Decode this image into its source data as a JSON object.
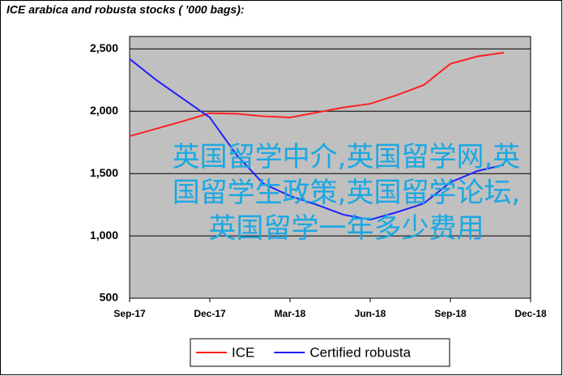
{
  "chart_data": {
    "type": "line",
    "title": "ICE arabica and robusta stocks ( '000 bags):",
    "categories": [
      "Sep-17",
      null,
      null,
      "Dec-17",
      null,
      null,
      "Mar-18",
      null,
      null,
      "Jun-18",
      null,
      null,
      "Sep-18",
      null,
      null,
      "Dec-18"
    ],
    "series": [
      {
        "name": "ICE",
        "color": "#ff2020",
        "values": [
          1800,
          1860,
          1920,
          1985,
          1980,
          1960,
          1950,
          1990,
          2030,
          2060,
          2130,
          2210,
          2380,
          2440,
          2470,
          null
        ]
      },
      {
        "name": "Certified robusta",
        "color": "#2020ff",
        "values": [
          2420,
          2250,
          2100,
          1950,
          1650,
          1420,
          1320,
          1250,
          1170,
          1130,
          1190,
          1260,
          1430,
          1520,
          1570,
          null
        ]
      }
    ],
    "ylim": [
      500,
      2600
    ],
    "yticks": [
      500,
      {
        "value": 1000,
        "label": "1,000"
      },
      {
        "value": 1500,
        "label": "1,500"
      },
      {
        "value": 2000,
        "label": "2,000"
      },
      {
        "value": 2500,
        "label": "2,500"
      }
    ],
    "grid": true,
    "background": "#c0c0c0",
    "watermark": "英国留学中介,英国留学网,英国留学生政策,英国留学论坛,英国留学一年多少费用"
  }
}
